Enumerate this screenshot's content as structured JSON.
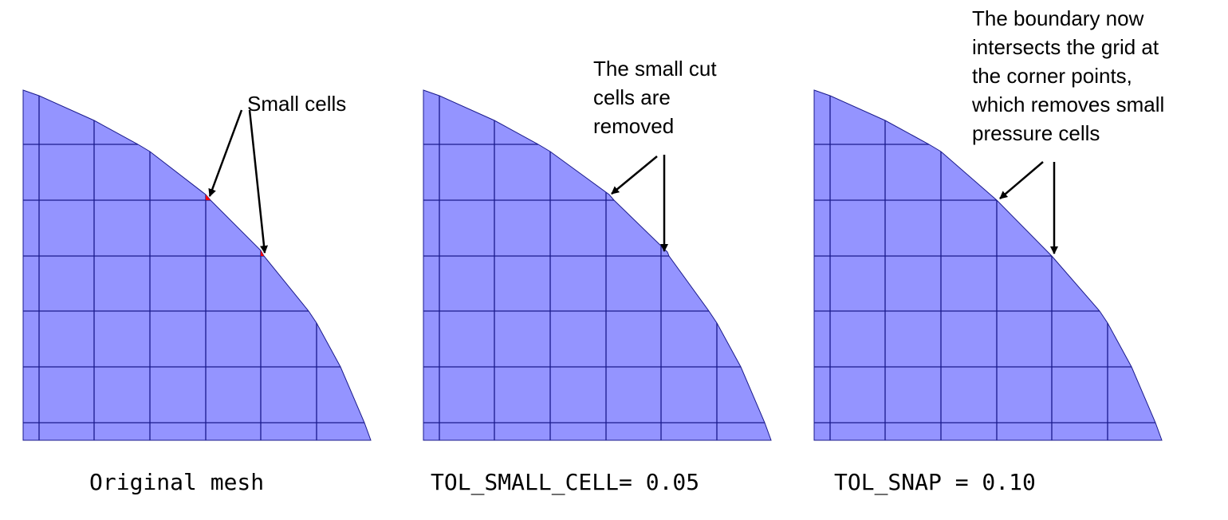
{
  "colors": {
    "fill": "#9494ff",
    "grid": "#1a1a8c",
    "small_cell": "#ff0000",
    "arrow": "#000000"
  },
  "panels": [
    {
      "annotation": "Small cells",
      "caption": "Original mesh"
    },
    {
      "annotation": "The small cut\ncells are\nremoved",
      "caption": "TOL_SMALL_CELL= 0.05"
    },
    {
      "annotation": "The boundary now\nintersects the grid at\nthe corner points,\nwhich removes small\npressure cells",
      "caption": "TOL_SNAP = 0.10"
    }
  ]
}
